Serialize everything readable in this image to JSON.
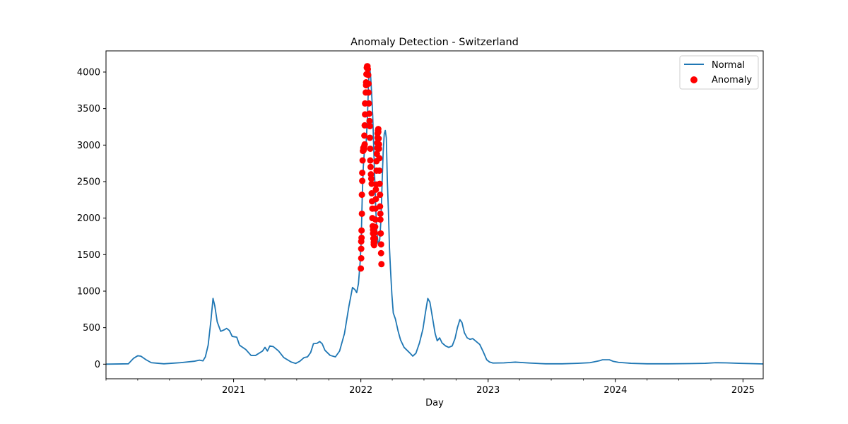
{
  "chart_data": {
    "type": "line",
    "title": "Anomaly Detection - Switzerland",
    "xlabel": "Day",
    "ylabel": "",
    "xlim": [
      "2020-01-01",
      "2025-02-28"
    ],
    "ylim": [
      -200,
      4290
    ],
    "x_ticks": [
      "2021",
      "2022",
      "2023",
      "2024",
      "2025"
    ],
    "y_ticks": [
      0,
      500,
      1000,
      1500,
      2000,
      2500,
      3000,
      3500,
      4000
    ],
    "grid": false,
    "legend_position": "top-right",
    "colors": {
      "line": "#1f77b4",
      "anomaly": "#ff0000"
    },
    "series": [
      {
        "name": "Normal",
        "kind": "line",
        "points": [
          [
            "2020-01-01",
            0
          ],
          [
            "2020-03-05",
            5
          ],
          [
            "2020-03-20",
            80
          ],
          [
            "2020-04-01",
            115
          ],
          [
            "2020-04-10",
            110
          ],
          [
            "2020-04-25",
            60
          ],
          [
            "2020-05-10",
            20
          ],
          [
            "2020-06-15",
            5
          ],
          [
            "2020-08-01",
            20
          ],
          [
            "2020-09-10",
            40
          ],
          [
            "2020-09-25",
            55
          ],
          [
            "2020-10-05",
            45
          ],
          [
            "2020-10-12",
            100
          ],
          [
            "2020-10-20",
            260
          ],
          [
            "2020-10-28",
            600
          ],
          [
            "2020-11-03",
            900
          ],
          [
            "2020-11-08",
            800
          ],
          [
            "2020-11-15",
            580
          ],
          [
            "2020-11-25",
            450
          ],
          [
            "2020-12-05",
            470
          ],
          [
            "2020-12-12",
            490
          ],
          [
            "2020-12-20",
            460
          ],
          [
            "2020-12-28",
            380
          ],
          [
            "2021-01-10",
            370
          ],
          [
            "2021-01-18",
            260
          ],
          [
            "2021-02-05",
            200
          ],
          [
            "2021-02-20",
            120
          ],
          [
            "2021-03-05",
            120
          ],
          [
            "2021-03-25",
            180
          ],
          [
            "2021-04-01",
            230
          ],
          [
            "2021-04-08",
            180
          ],
          [
            "2021-04-15",
            250
          ],
          [
            "2021-04-25",
            240
          ],
          [
            "2021-05-10",
            180
          ],
          [
            "2021-05-25",
            90
          ],
          [
            "2021-06-15",
            30
          ],
          [
            "2021-06-28",
            10
          ],
          [
            "2021-07-10",
            40
          ],
          [
            "2021-07-22",
            90
          ],
          [
            "2021-08-01",
            100
          ],
          [
            "2021-08-10",
            160
          ],
          [
            "2021-08-18",
            280
          ],
          [
            "2021-08-28",
            285
          ],
          [
            "2021-09-05",
            310
          ],
          [
            "2021-09-12",
            280
          ],
          [
            "2021-09-20",
            190
          ],
          [
            "2021-10-05",
            120
          ],
          [
            "2021-10-20",
            100
          ],
          [
            "2021-11-01",
            180
          ],
          [
            "2021-11-15",
            420
          ],
          [
            "2021-11-28",
            800
          ],
          [
            "2021-12-08",
            1050
          ],
          [
            "2021-12-15",
            1020
          ],
          [
            "2021-12-20",
            980
          ],
          [
            "2021-12-25",
            1100
          ],
          [
            "2021-12-30",
            1400
          ],
          [
            "2022-01-02",
            1700
          ],
          [
            "2022-01-05",
            2300
          ],
          [
            "2022-01-08",
            2700
          ],
          [
            "2022-01-12",
            2980
          ],
          [
            "2022-01-16",
            3000
          ],
          [
            "2022-01-20",
            3400
          ],
          [
            "2022-01-23",
            3850
          ],
          [
            "2022-01-26",
            4070
          ],
          [
            "2022-01-29",
            3950
          ],
          [
            "2022-02-01",
            3700
          ],
          [
            "2022-02-04",
            3400
          ],
          [
            "2022-02-07",
            2950
          ],
          [
            "2022-02-10",
            2500
          ],
          [
            "2022-02-13",
            2100
          ],
          [
            "2022-02-16",
            1800
          ],
          [
            "2022-02-20",
            1640
          ],
          [
            "2022-02-24",
            1700
          ],
          [
            "2022-02-28",
            2000
          ],
          [
            "2022-03-03",
            2500
          ],
          [
            "2022-03-06",
            2900
          ],
          [
            "2022-03-09",
            3150
          ],
          [
            "2022-03-12",
            3200
          ],
          [
            "2022-03-15",
            3100
          ],
          [
            "2022-03-18",
            2500
          ],
          [
            "2022-03-21",
            2100
          ],
          [
            "2022-03-24",
            1600
          ],
          [
            "2022-03-27",
            1300
          ],
          [
            "2022-03-31",
            950
          ],
          [
            "2022-04-04",
            700
          ],
          [
            "2022-04-10",
            620
          ],
          [
            "2022-04-18",
            450
          ],
          [
            "2022-04-25",
            330
          ],
          [
            "2022-05-05",
            230
          ],
          [
            "2022-05-20",
            160
          ],
          [
            "2022-05-30",
            110
          ],
          [
            "2022-06-08",
            150
          ],
          [
            "2022-06-18",
            290
          ],
          [
            "2022-06-28",
            480
          ],
          [
            "2022-07-05",
            700
          ],
          [
            "2022-07-12",
            900
          ],
          [
            "2022-07-18",
            850
          ],
          [
            "2022-07-25",
            650
          ],
          [
            "2022-08-02",
            420
          ],
          [
            "2022-08-08",
            320
          ],
          [
            "2022-08-15",
            360
          ],
          [
            "2022-08-22",
            290
          ],
          [
            "2022-09-01",
            250
          ],
          [
            "2022-09-10",
            230
          ],
          [
            "2022-09-20",
            250
          ],
          [
            "2022-09-28",
            350
          ],
          [
            "2022-10-05",
            500
          ],
          [
            "2022-10-12",
            610
          ],
          [
            "2022-10-18",
            570
          ],
          [
            "2022-10-25",
            430
          ],
          [
            "2022-11-02",
            360
          ],
          [
            "2022-11-10",
            340
          ],
          [
            "2022-11-18",
            350
          ],
          [
            "2022-11-28",
            310
          ],
          [
            "2022-12-08",
            270
          ],
          [
            "2022-12-18",
            170
          ],
          [
            "2022-12-28",
            60
          ],
          [
            "2023-01-05",
            30
          ],
          [
            "2023-01-15",
            15
          ],
          [
            "2023-02-15",
            18
          ],
          [
            "2023-03-20",
            28
          ],
          [
            "2023-05-01",
            15
          ],
          [
            "2023-06-15",
            5
          ],
          [
            "2023-08-01",
            5
          ],
          [
            "2023-09-15",
            12
          ],
          [
            "2023-10-20",
            20
          ],
          [
            "2023-11-15",
            45
          ],
          [
            "2023-11-25",
            60
          ],
          [
            "2023-12-15",
            60
          ],
          [
            "2023-12-25",
            40
          ],
          [
            "2024-01-10",
            25
          ],
          [
            "2024-02-15",
            12
          ],
          [
            "2024-04-01",
            5
          ],
          [
            "2024-06-01",
            5
          ],
          [
            "2024-08-01",
            8
          ],
          [
            "2024-09-15",
            12
          ],
          [
            "2024-10-15",
            20
          ],
          [
            "2024-11-15",
            18
          ],
          [
            "2024-12-20",
            12
          ],
          [
            "2025-01-20",
            8
          ],
          [
            "2025-02-28",
            3
          ]
        ]
      },
      {
        "name": "Anomaly",
        "kind": "scatter",
        "points": [
          [
            "2022-01-01",
            1310
          ],
          [
            "2022-01-02",
            1450
          ],
          [
            "2022-01-02",
            1580
          ],
          [
            "2022-01-02",
            1680
          ],
          [
            "2022-01-03",
            1730
          ],
          [
            "2022-01-03",
            1830
          ],
          [
            "2022-01-04",
            2060
          ],
          [
            "2022-01-04",
            2320
          ],
          [
            "2022-01-05",
            2510
          ],
          [
            "2022-01-05",
            2620
          ],
          [
            "2022-01-06",
            2790
          ],
          [
            "2022-01-07",
            2920
          ],
          [
            "2022-01-08",
            2960
          ],
          [
            "2022-01-09",
            2930
          ],
          [
            "2022-01-10",
            2950
          ],
          [
            "2022-01-11",
            2990
          ],
          [
            "2022-01-12",
            3010
          ],
          [
            "2022-01-11",
            3130
          ],
          [
            "2022-01-12",
            3270
          ],
          [
            "2022-01-13",
            3420
          ],
          [
            "2022-01-13",
            3570
          ],
          [
            "2022-01-15",
            3720
          ],
          [
            "2022-01-16",
            3820
          ],
          [
            "2022-01-16",
            3860
          ],
          [
            "2022-01-17",
            3970
          ],
          [
            "2022-01-18",
            4060
          ],
          [
            "2022-01-19",
            4080
          ],
          [
            "2022-01-20",
            4080
          ],
          [
            "2022-01-21",
            4040
          ],
          [
            "2022-01-22",
            3960
          ],
          [
            "2022-01-23",
            3840
          ],
          [
            "2022-01-23",
            3720
          ],
          [
            "2022-01-24",
            3570
          ],
          [
            "2022-01-25",
            3430
          ],
          [
            "2022-01-26",
            3330
          ],
          [
            "2022-01-27",
            3260
          ],
          [
            "2022-01-27",
            3100
          ],
          [
            "2022-01-28",
            2950
          ],
          [
            "2022-01-28",
            2790
          ],
          [
            "2022-01-29",
            2700
          ],
          [
            "2022-01-30",
            2600
          ],
          [
            "2022-01-31",
            2540
          ],
          [
            "2022-02-01",
            2470
          ],
          [
            "2022-02-01",
            2340
          ],
          [
            "2022-02-02",
            2230
          ],
          [
            "2022-02-03",
            2130
          ],
          [
            "2022-02-03",
            2000
          ],
          [
            "2022-02-04",
            1890
          ],
          [
            "2022-02-05",
            1840
          ],
          [
            "2022-02-05",
            1790
          ],
          [
            "2022-02-06",
            1720
          ],
          [
            "2022-02-07",
            1670
          ],
          [
            "2022-02-07",
            1640
          ],
          [
            "2022-02-08",
            1630
          ],
          [
            "2022-02-09",
            1670
          ],
          [
            "2022-02-10",
            1720
          ],
          [
            "2022-02-10",
            1800
          ],
          [
            "2022-02-11",
            1880
          ],
          [
            "2022-02-12",
            1980
          ],
          [
            "2022-02-12",
            2130
          ],
          [
            "2022-02-13",
            2260
          ],
          [
            "2022-02-13",
            2390
          ],
          [
            "2022-02-14",
            2460
          ],
          [
            "2022-02-15",
            2650
          ],
          [
            "2022-02-15",
            2780
          ],
          [
            "2022-02-16",
            2880
          ],
          [
            "2022-02-17",
            2960
          ],
          [
            "2022-02-17",
            3030
          ],
          [
            "2022-02-18",
            3100
          ],
          [
            "2022-02-18",
            3160
          ],
          [
            "2022-02-19",
            3200
          ],
          [
            "2022-02-20",
            3220
          ],
          [
            "2022-02-20",
            3180
          ],
          [
            "2022-02-21",
            3090
          ],
          [
            "2022-02-22",
            3010
          ],
          [
            "2022-02-22",
            2950
          ],
          [
            "2022-02-23",
            2820
          ],
          [
            "2022-02-23",
            2650
          ],
          [
            "2022-02-24",
            2470
          ],
          [
            "2022-02-25",
            2320
          ],
          [
            "2022-02-25",
            2160
          ],
          [
            "2022-02-26",
            2060
          ],
          [
            "2022-02-26",
            1980
          ],
          [
            "2022-02-27",
            1790
          ],
          [
            "2022-02-28",
            1640
          ],
          [
            "2022-02-28",
            1520
          ],
          [
            "2022-03-01",
            1370
          ]
        ]
      }
    ],
    "legend": [
      "Normal",
      "Anomaly"
    ]
  }
}
